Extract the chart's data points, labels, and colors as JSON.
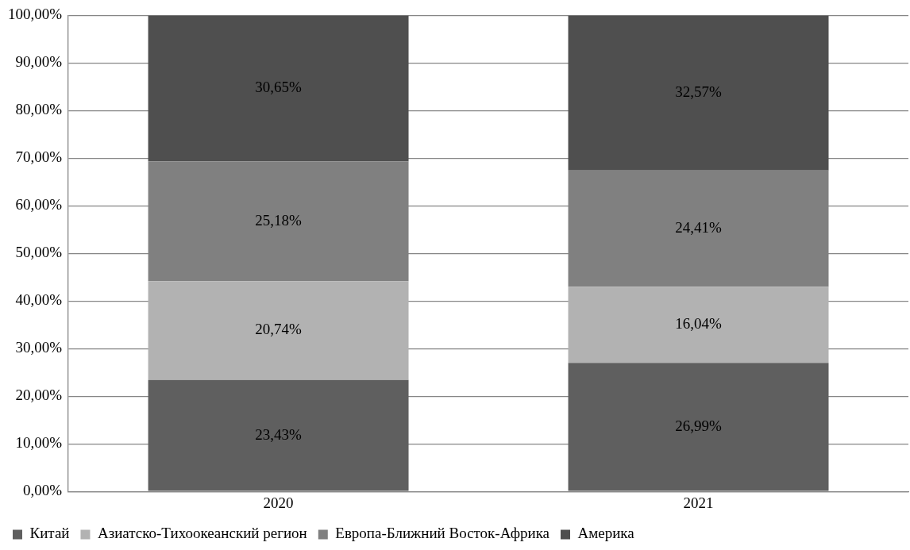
{
  "chart_data": {
    "type": "bar",
    "stacked": true,
    "categories": [
      "2020",
      "2021"
    ],
    "series": [
      {
        "name": "Китай",
        "color": "#5f5f5f",
        "values": [
          23.43,
          26.99
        ],
        "value_labels": [
          "23,43%",
          "26,99%"
        ]
      },
      {
        "name": "Азиатско-Тихоокеанский регион",
        "color": "#b2b2b2",
        "values": [
          20.74,
          16.04
        ],
        "value_labels": [
          "20,74%",
          "16,04%"
        ]
      },
      {
        "name": "Европа-Ближний Восток-Африка",
        "color": "#808080",
        "values": [
          25.18,
          24.41
        ],
        "value_labels": [
          "25,18%",
          "24,41%"
        ]
      },
      {
        "name": "Америка",
        "color": "#4f4f4f",
        "values": [
          30.65,
          32.57
        ],
        "value_labels": [
          "30,65%",
          "32,57%"
        ]
      }
    ],
    "ylim": [
      0,
      100.01
    ],
    "yticks": [
      {
        "value": 0,
        "label": "0,00%"
      },
      {
        "value": 10,
        "label": "10,00%"
      },
      {
        "value": 20,
        "label": "20,00%"
      },
      {
        "value": 30,
        "label": "30,00%"
      },
      {
        "value": 40,
        "label": "40,00%"
      },
      {
        "value": 50,
        "label": "50,00%"
      },
      {
        "value": 60,
        "label": "60,00%"
      },
      {
        "value": 70,
        "label": "70,00%"
      },
      {
        "value": 80,
        "label": "80,00%"
      },
      {
        "value": 90,
        "label": "90,00%"
      },
      {
        "value": 100,
        "label": "100,00%"
      }
    ],
    "grid": "y",
    "legend": "bottom"
  }
}
